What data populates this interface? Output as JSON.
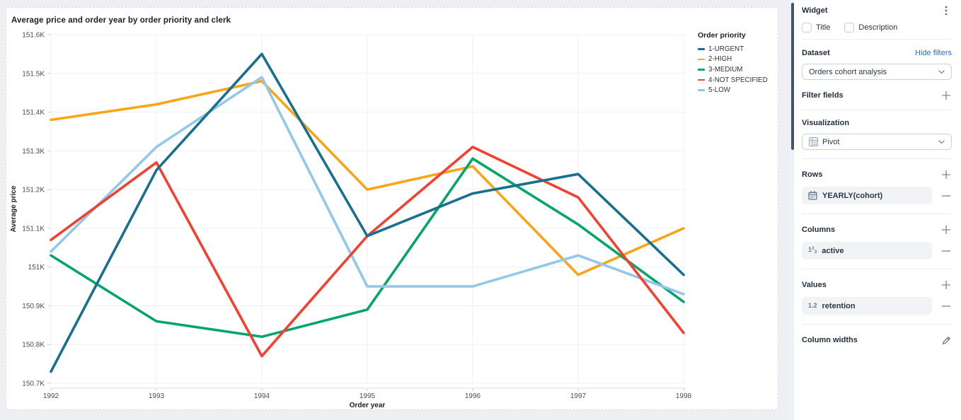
{
  "chart": {
    "title": "Average price and order year by order priority and clerk"
  },
  "chart_data": {
    "type": "line",
    "title": "Average price and order year by order priority and clerk",
    "xlabel": "Order year",
    "ylabel": "Average price",
    "unit": "K",
    "x": [
      1992,
      1993,
      1994,
      1995,
      1996,
      1997,
      1998
    ],
    "series": [
      {
        "name": "1-URGENT",
        "color": "#17708F",
        "values": [
          150.73,
          151.25,
          151.55,
          151.08,
          151.19,
          151.24,
          150.98
        ]
      },
      {
        "name": "2-HIGH",
        "color": "#FCA417",
        "values": [
          151.38,
          151.42,
          151.48,
          151.2,
          151.26,
          150.98,
          151.1
        ]
      },
      {
        "name": "3-MEDIUM",
        "color": "#06A56C",
        "values": [
          151.03,
          150.86,
          150.82,
          150.89,
          151.28,
          151.11,
          150.91
        ]
      },
      {
        "name": "4-NOT SPECIFIED",
        "color": "#F4402E",
        "values": [
          151.07,
          151.27,
          150.77,
          151.08,
          151.31,
          151.18,
          150.83
        ]
      },
      {
        "name": "5-LOW",
        "color": "#92C8E9",
        "values": [
          151.04,
          151.31,
          151.49,
          150.95,
          150.95,
          151.03,
          150.93
        ]
      }
    ],
    "ylim": [
      150.7,
      151.6
    ],
    "ytick_values": [
      150.7,
      150.8,
      150.9,
      151.0,
      151.1,
      151.2,
      151.3,
      151.4,
      151.5,
      151.6
    ],
    "ytick_labels": [
      "150.7K",
      "150.8K",
      "150.9K",
      "151K",
      "151.1K",
      "151.2K",
      "151.3K",
      "151.4K",
      "151.5K",
      "151.6K"
    ],
    "legend_title": "Order priority",
    "legend_position": "right",
    "grid": true
  },
  "sidebar": {
    "widget": {
      "title": "Widget",
      "checkboxes": [
        {
          "label": "Title",
          "checked": false
        },
        {
          "label": "Description",
          "checked": false
        }
      ]
    },
    "dataset": {
      "label": "Dataset",
      "link_label": "Hide filters",
      "selected": "Orders cohort analysis"
    },
    "filter_fields": {
      "label": "Filter fields"
    },
    "visualization": {
      "label": "Visualization",
      "selected": "Pivot"
    },
    "rows": {
      "label": "Rows",
      "fields": [
        {
          "icon": "calendar-icon",
          "label": "YEARLY(cohort)"
        }
      ]
    },
    "columns": {
      "label": "Columns",
      "fields": [
        {
          "icon": "integer-icon",
          "icon_text": "1",
          "label": "active"
        }
      ]
    },
    "values": {
      "label": "Values",
      "fields": [
        {
          "icon": "decimal-icon",
          "icon_text": "1.2",
          "label": "retention"
        }
      ]
    },
    "column_widths": {
      "label": "Column widths"
    }
  },
  "colors": {
    "link_blue": "#2E6BCF",
    "panel_bg": "#FFFFFF",
    "page_bg": "#EDEFF3",
    "scroll_thumb": "#41566C"
  }
}
